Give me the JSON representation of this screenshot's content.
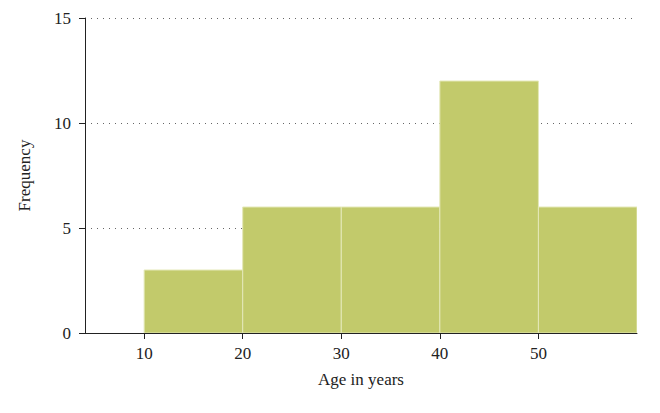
{
  "chart_data": {
    "type": "histogram",
    "xlabel": "Age in years",
    "ylabel": "Frequency",
    "bins": [
      10,
      20,
      30,
      40,
      50,
      60
    ],
    "values": [
      3,
      6,
      6,
      12,
      6
    ],
    "color": "#c2ca6b",
    "xlim": [
      4,
      60
    ],
    "xticks": [
      10,
      20,
      30,
      40,
      50
    ],
    "ylim": [
      0,
      15
    ],
    "yticks": [
      0,
      5,
      10,
      15
    ],
    "grid": true
  }
}
